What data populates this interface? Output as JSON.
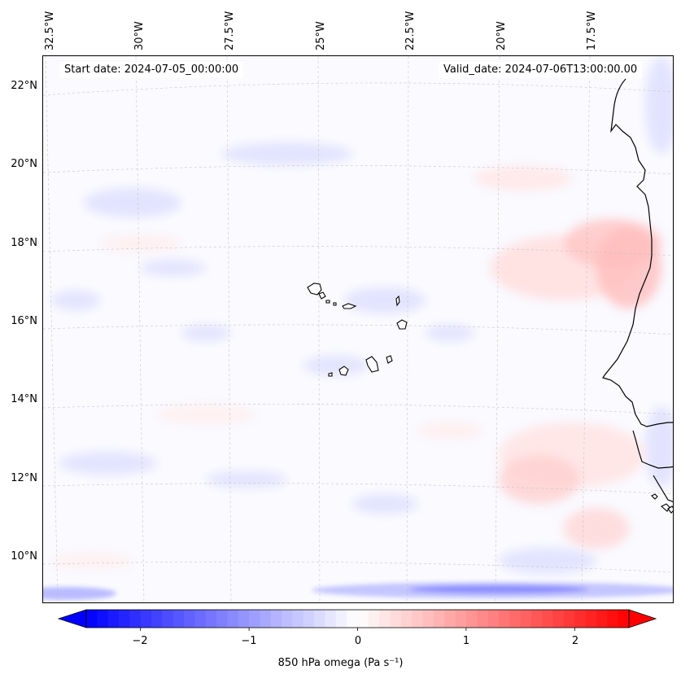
{
  "header": {
    "start_date": "Start date: 2024-07-05_00:00:00",
    "valid_date": "Valid_date: 2024-07-06T13:00:00.00"
  },
  "map": {
    "longitude_labels": [
      "32.5°W",
      "30°W",
      "27.5°W",
      "25°W",
      "22.5°W",
      "20°W",
      "17.5°W"
    ],
    "latitude_labels": [
      "22°N",
      "20°N",
      "18°N",
      "16°N",
      "14°N",
      "12°N",
      "10°N"
    ],
    "gridlines": "dashed",
    "features": [
      "coastline-west-africa",
      "cape-verde-islands"
    ]
  },
  "colorbar": {
    "label": "850 hPa omega (Pa s⁻¹)",
    "ticks": [
      "−2",
      "−1",
      "0",
      "1",
      "2"
    ],
    "range": [
      -2.5,
      2.5
    ],
    "colormap": "bwr",
    "extend": "both",
    "min_color": "#0000ff",
    "mid_color": "#ffffff",
    "max_color": "#ff0000"
  }
}
